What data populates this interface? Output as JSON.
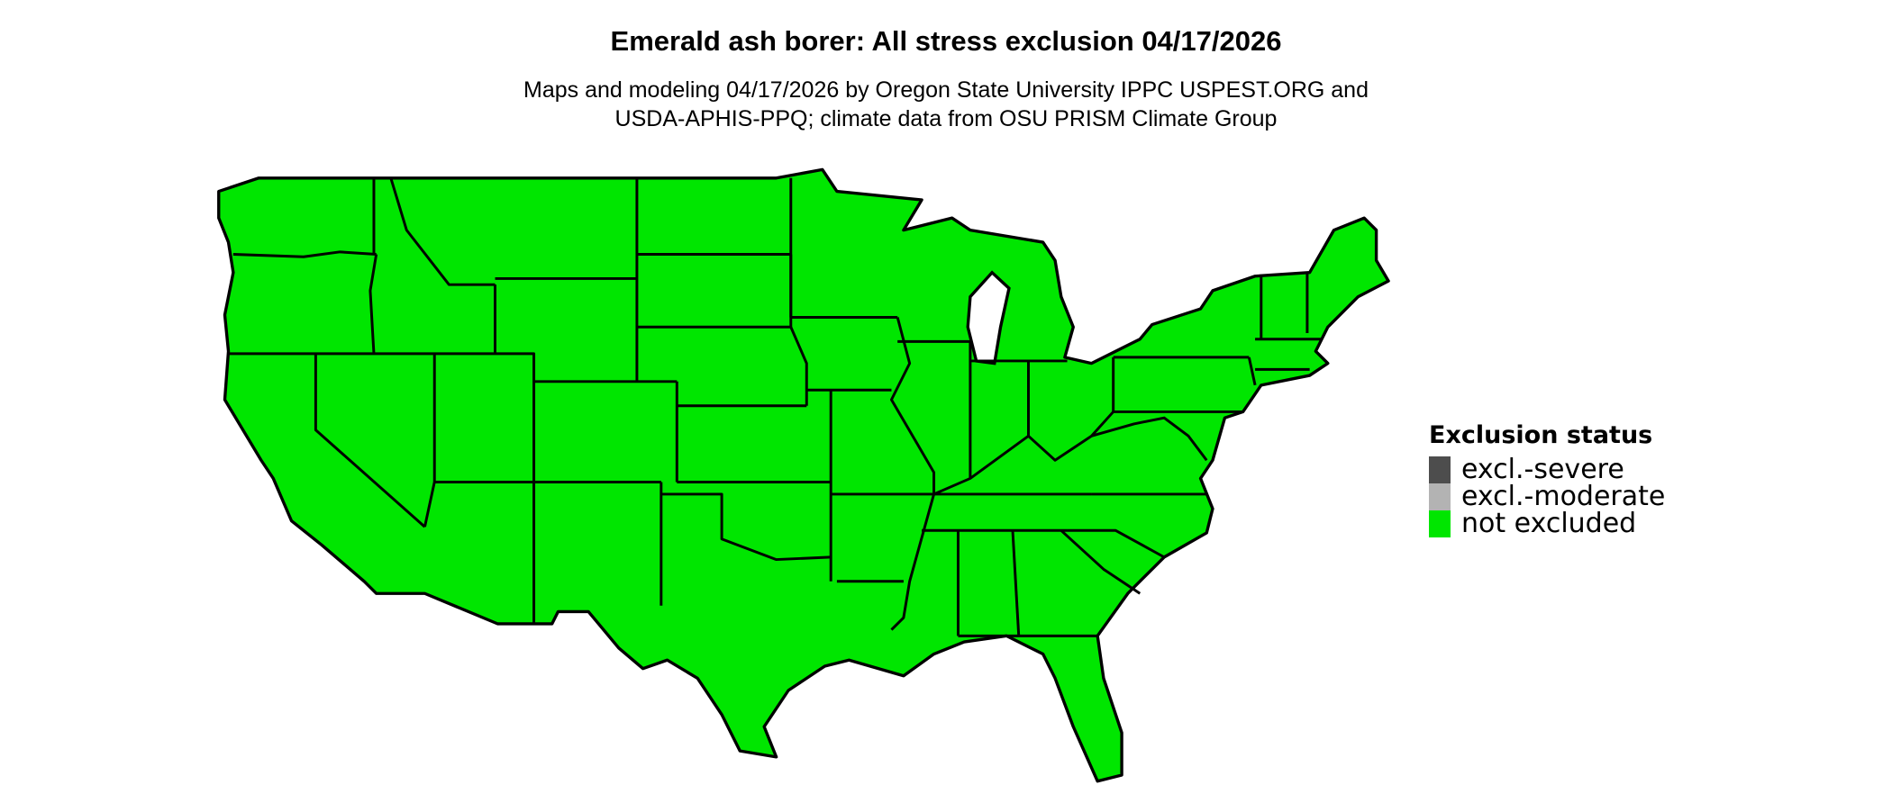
{
  "title": "Emerald ash borer: All stress exclusion 04/17/2026",
  "subtitle": {
    "line1": "Maps and modeling 04/17/2026 by Oregon State University IPPC USPEST.ORG and",
    "line2": "USDA-APHIS-PPQ; climate data from OSU PRISM Climate Group"
  },
  "map": {
    "region": "contiguous United States",
    "fill_category": "not excluded",
    "fill_color": "#00e600",
    "border_color": "#000000"
  },
  "legend": {
    "title": "Exclusion status",
    "items": [
      {
        "label": "excl.-severe",
        "color": "#4d4d4d"
      },
      {
        "label": "excl.-moderate",
        "color": "#b3b3b3"
      },
      {
        "label": "not excluded",
        "color": "#00e600"
      }
    ]
  }
}
